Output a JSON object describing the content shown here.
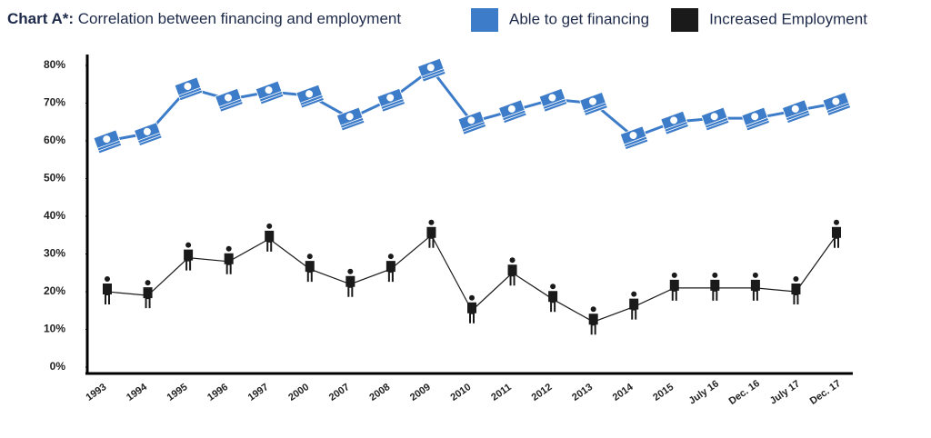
{
  "chart_data": {
    "type": "line",
    "title_label": "Chart A*:",
    "title": "Correlation between financing and employment",
    "categories": [
      "1993",
      "1994",
      "1995",
      "1996",
      "1997",
      "2000",
      "2007",
      "2008",
      "2009",
      "2010",
      "2011",
      "2012",
      "2013",
      "2014",
      "2015",
      "July 16",
      "Dec. 16",
      "July 17",
      "Dec. 17"
    ],
    "series": [
      {
        "name": "Able to get financing",
        "color": "#3d7cc9",
        "values": [
          60,
          62,
          74,
          71,
          73,
          72,
          66,
          71,
          79,
          65,
          68,
          71,
          70,
          61,
          65,
          66,
          66,
          68,
          70
        ]
      },
      {
        "name": "Increased Employment",
        "color": "#1a1a1a",
        "values": [
          20,
          19,
          29,
          28,
          34,
          26,
          22,
          26,
          35,
          15,
          25,
          18,
          12,
          16,
          21,
          21,
          21,
          20,
          35
        ]
      }
    ],
    "ylim": [
      0,
      80
    ],
    "yticks": [
      {
        "value": 0,
        "label": "0%"
      },
      {
        "value": 10,
        "label": "10%"
      },
      {
        "value": 20,
        "label": "20%"
      },
      {
        "value": 30,
        "label": "30%"
      },
      {
        "value": 40,
        "label": "40%"
      },
      {
        "value": 50,
        "label": "50%"
      },
      {
        "value": 60,
        "label": "60%"
      },
      {
        "value": 70,
        "label": "70%"
      },
      {
        "value": 80,
        "label": "80%"
      }
    ]
  }
}
